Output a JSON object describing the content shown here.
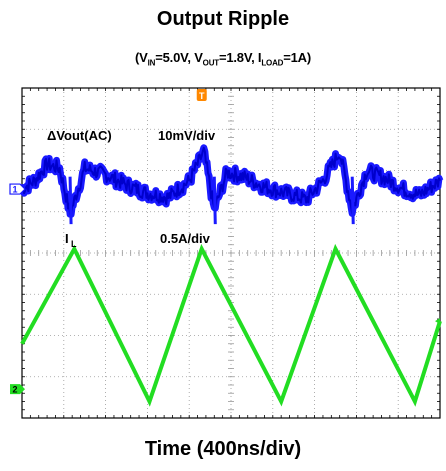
{
  "title": "Output Ripple",
  "subtitle": {
    "p1": "(V",
    "s1": "IN",
    "p2": "=5.0V, V",
    "s2": "OUT",
    "p3": "=1.8V, I",
    "s3": "LOAD",
    "p4": "=1A)"
  },
  "xlabel": "Time (400ns/div)",
  "annotations": {
    "vout_label": "ΔVout(AC)",
    "vout_scale": "10mV/div",
    "il_label": "I",
    "il_sub": "L",
    "il_scale": "0.5A/div"
  },
  "markers": {
    "trigger": "T",
    "ch1": "1",
    "ch2": "2"
  },
  "colors": {
    "ch1": "#1a1aff",
    "ch2": "#22dd22",
    "trigger": "#ff8800",
    "grid": "#9a9a9a",
    "frame": "#000000"
  },
  "chart_data": {
    "type": "line",
    "xlabel": "Time (400ns/div)",
    "x_divisions": 10,
    "y_divisions": 8,
    "series": [
      {
        "name": "ΔVout(AC)",
        "scale": "10mV/div",
        "x_div": [
          0,
          0.3,
          0.6,
          0.9,
          1.15,
          1.5,
          2.0,
          2.5,
          3.0,
          3.5,
          4.0,
          4.35,
          4.6,
          4.9,
          5.3,
          5.8,
          6.3,
          6.8,
          7.2,
          7.6,
          7.9,
          8.25,
          8.7,
          9.1,
          9.5,
          10.0
        ],
        "y_div": [
          0.0,
          0.2,
          0.6,
          0.5,
          -0.6,
          0.5,
          0.35,
          0.1,
          -0.1,
          -0.2,
          0.2,
          0.9,
          -0.5,
          0.4,
          0.3,
          0.05,
          -0.1,
          -0.25,
          0.2,
          0.9,
          -0.5,
          0.45,
          0.25,
          0.0,
          -0.15,
          0.2
        ]
      },
      {
        "name": "IL",
        "scale": "0.5A/div",
        "x_div": [
          0,
          1.25,
          4.3,
          7.5,
          10.0
        ],
        "y_div": [
          -0.9,
          1.4,
          1.4,
          1.4,
          -0.2
        ],
        "waveform": "triangle",
        "peaks_x_div": [
          1.25,
          4.3,
          7.5
        ],
        "valleys_x_div": [
          3.05,
          6.2,
          9.4
        ],
        "peak_y_div": 1.4,
        "valley_y_div": -2.3
      }
    ]
  }
}
